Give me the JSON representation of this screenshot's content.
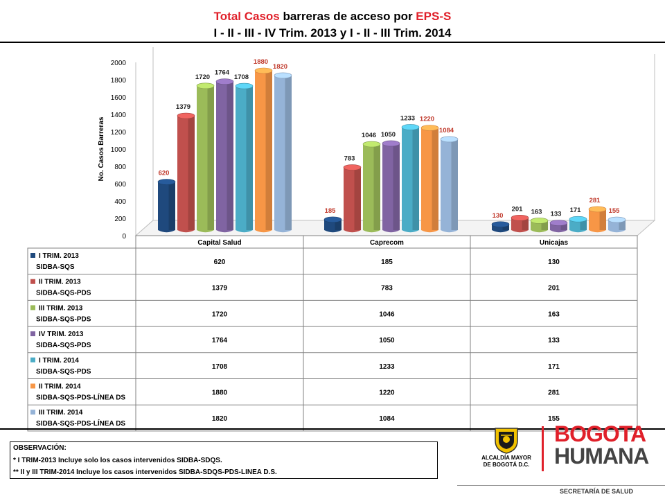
{
  "header": {
    "title_red1": "Total Casos",
    "title_mid": " barreras de acceso por ",
    "title_red2": "EPS-S",
    "subtitle": "I - II - III - IV Trim. 2013 y I - II - III Trim. 2014"
  },
  "chart_data": {
    "type": "bar",
    "ylabel": "No. Casos Barreras",
    "ylim": [
      0,
      2000
    ],
    "yticks": [
      0,
      200,
      400,
      600,
      800,
      1000,
      1200,
      1400,
      1600,
      1800,
      2000
    ],
    "categories": [
      "Capital Salud",
      "Caprecom",
      "Unicajas"
    ],
    "series": [
      {
        "name": "I TRIM. 2013",
        "name2": "SIDBA-SQS",
        "color": "#1f497d",
        "label_color": "#c0392b",
        "values": [
          620,
          185,
          130
        ]
      },
      {
        "name": "II TRIM. 2013",
        "name2": "SIDBA-SQS-PDS",
        "color": "#c0504d",
        "label_color": "#222222",
        "values": [
          1379,
          783,
          201
        ]
      },
      {
        "name": "III TRIM. 2013",
        "name2": "SIDBA-SQS-PDS",
        "color": "#9bbb59",
        "label_color": "#222222",
        "values": [
          1720,
          1046,
          163
        ]
      },
      {
        "name": "IV TRIM. 2013",
        "name2": "SIDBA-SQS-PDS",
        "color": "#8064a2",
        "label_color": "#222222",
        "values": [
          1764,
          1050,
          133
        ]
      },
      {
        "name": "I TRIM. 2014",
        "name2": "SIDBA-SQS-PDS",
        "color": "#4bacc6",
        "label_color": "#222222",
        "values": [
          1708,
          1233,
          171
        ]
      },
      {
        "name": "II TRIM. 2014",
        "name2": "SIDBA-SQS-PDS-LÍNEA DS",
        "color": "#f79646",
        "label_color": "#c0392b",
        "values": [
          1880,
          1220,
          281
        ]
      },
      {
        "name": "III TRIM. 2014",
        "name2": "SIDBA-SQS-PDS-LÍNEA DS",
        "color": "#95b3d7",
        "label_color": "#c0392b",
        "values": [
          1820,
          1084,
          155
        ]
      }
    ]
  },
  "observation": {
    "heading": "OBSERVACIÓN:",
    "line1": "* I TRIM-2013 Incluye solo los casos intervenidos SIDBA-SDQS.",
    "line2": "** II y III TRIM-2014 Incluye los casos intervenidos SIDBA-SDQS-PDS-LINEA D.S."
  },
  "logos": {
    "alcaldia_line1": "ALCALDÍA MAYOR",
    "alcaldia_line2": "DE BOGOTÁ D.C.",
    "bogota_line1": "BOGOTA",
    "bogota_line2": "HUMANA"
  },
  "footer": {
    "text": "SECRETARÍA DE SALUD"
  }
}
